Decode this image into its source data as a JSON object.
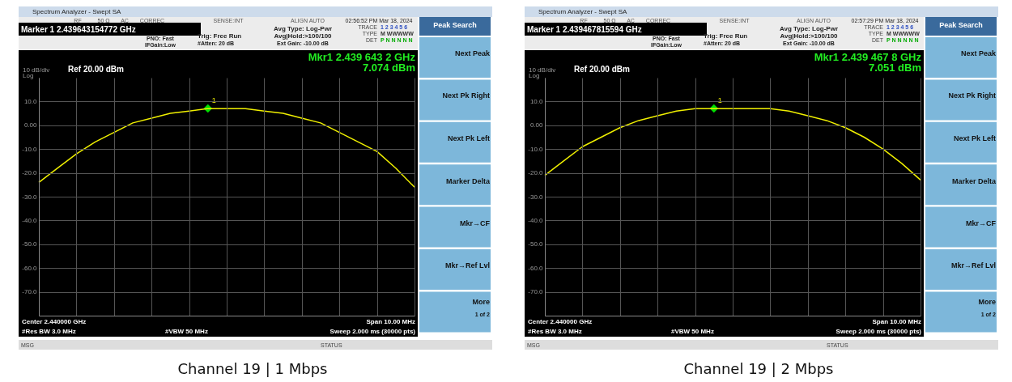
{
  "chart_data": [
    {
      "type": "line",
      "title": "Channel 19 | 1 Mbps",
      "categories": [
        null,
        null,
        null,
        null,
        null,
        null,
        null,
        null,
        null,
        null,
        null,
        null,
        null,
        null,
        null,
        null,
        null,
        null,
        null,
        null,
        null
      ],
      "series": [
        {
          "type": "line",
          "color": "#f0f000",
          "values": [
            -24,
            -18,
            -12,
            -7,
            -3,
            1,
            3,
            5,
            6,
            7,
            7,
            7,
            6,
            5,
            3,
            1,
            -3,
            -7,
            -11,
            -18,
            -26
          ]
        },
        {
          "type": "scatter",
          "name": "1",
          "color": "#00e000",
          "marker": "diamond",
          "values": [
            null,
            null,
            null,
            null,
            null,
            null,
            null,
            null,
            null,
            7.074,
            null,
            null,
            null,
            null,
            null,
            null,
            null,
            null,
            null,
            null,
            null
          ]
        }
      ],
      "ylim": [
        -80,
        20
      ],
      "yticks": [
        {
          "value": 10,
          "label": "10.0"
        },
        {
          "value": 0,
          "label": "0.00"
        },
        {
          "value": -10,
          "label": "-10.0"
        },
        {
          "value": -20,
          "label": "-20.0"
        },
        {
          "value": -30,
          "label": "-30.0"
        },
        {
          "value": -40,
          "label": "-40.0"
        },
        {
          "value": -50,
          "label": "-50.0"
        },
        {
          "value": -60,
          "label": "-60.0"
        },
        {
          "value": -70,
          "label": "-70.0"
        }
      ],
      "grid": true,
      "tick_labels": "y",
      "annotations": [
        "Spectrum Analyzer - Swept SA",
        "RF",
        "50 Ω",
        "AC",
        "CORREC",
        "SENSE:INT",
        "ALIGN AUTO",
        "02:56:52 PM Mar 18, 2024",
        "Marker 1 2.439643154772 GHz",
        "PNO: Fast",
        "IFGain:Low",
        "Trig: Free Run",
        "#Atten: 20 dB",
        "Avg Type: Log-Pwr",
        "Avg|Hold:>100/100",
        "Ext Gain: -10.00 dB",
        "TRACE",
        "1 2 3 4 5 6",
        "TYPE",
        "M WWWWW",
        "DET",
        "P N N N N N",
        "Mkr1 2.439 643 2 GHz",
        "7.074 dBm",
        "10 dB/div",
        "Log",
        "Ref 20.00 dBm",
        "Center 2.440000 GHz",
        "Span 10.00 MHz",
        "#Res BW 3.0 MHz",
        "#VBW 50 MHz",
        "Sweep  2.000 ms (30000 pts)",
        "MSG",
        "STATUS",
        "Peak Search",
        "Next Peak",
        "Next Pk Right",
        "Next Pk Left",
        "Marker Delta",
        "Mkr→CF",
        "Mkr→Ref Lvl",
        "More",
        "1 of 2"
      ]
    },
    {
      "type": "line",
      "title": "Channel 19 | 2 Mbps",
      "categories": [
        null,
        null,
        null,
        null,
        null,
        null,
        null,
        null,
        null,
        null,
        null,
        null,
        null,
        null,
        null,
        null,
        null,
        null,
        null,
        null,
        null
      ],
      "series": [
        {
          "type": "line",
          "color": "#f0f000",
          "values": [
            -21,
            -15,
            -9,
            -5,
            -1,
            2,
            4,
            6,
            7,
            7,
            7,
            7,
            7,
            6,
            4,
            2,
            -1,
            -5,
            -10,
            -16,
            -23
          ]
        },
        {
          "type": "scatter",
          "name": "1",
          "color": "#00e000",
          "marker": "diamond",
          "values": [
            null,
            null,
            null,
            null,
            null,
            null,
            null,
            null,
            null,
            7.051,
            null,
            null,
            null,
            null,
            null,
            null,
            null,
            null,
            null,
            null,
            null
          ]
        }
      ],
      "ylim": [
        -80,
        20
      ],
      "yticks": [
        {
          "value": 10,
          "label": "10.0"
        },
        {
          "value": 0,
          "label": "0.00"
        },
        {
          "value": -10,
          "label": "-10.0"
        },
        {
          "value": -20,
          "label": "-20.0"
        },
        {
          "value": -30,
          "label": "-30.0"
        },
        {
          "value": -40,
          "label": "-40.0"
        },
        {
          "value": -50,
          "label": "-50.0"
        },
        {
          "value": -60,
          "label": "-60.0"
        },
        {
          "value": -70,
          "label": "-70.0"
        }
      ],
      "grid": true,
      "tick_labels": "y",
      "annotations": [
        "Spectrum Analyzer - Swept SA",
        "RF",
        "50 Ω",
        "AC",
        "CORREC",
        "SENSE:INT",
        "ALIGN AUTO",
        "02:57:29 PM Mar 18, 2024",
        "Marker 1 2.439467815594 GHz",
        "PNO: Fast",
        "IFGain:Low",
        "Trig: Free Run",
        "#Atten: 20 dB",
        "Avg Type: Log-Pwr",
        "Avg|Hold:>100/100",
        "Ext Gain: -10.00 dB",
        "TRACE",
        "1 2 3 4 5 6",
        "TYPE",
        "M WWWWW",
        "DET",
        "P N N N N N",
        "Mkr1 2.439 467 8 GHz",
        "7.051 dBm",
        "10 dB/div",
        "Log",
        "Ref 20.00 dBm",
        "Center 2.440000 GHz",
        "Span 10.00 MHz",
        "#Res BW 3.0 MHz",
        "#VBW 50 MHz",
        "Sweep  2.000 ms (30000 pts)",
        "MSG",
        "STATUS",
        "Peak Search",
        "Next Peak",
        "Next Pk Right",
        "Next Pk Left",
        "Marker Delta",
        "Mkr→CF",
        "Mkr→Ref Lvl",
        "More",
        "1 of 2"
      ]
    }
  ]
}
